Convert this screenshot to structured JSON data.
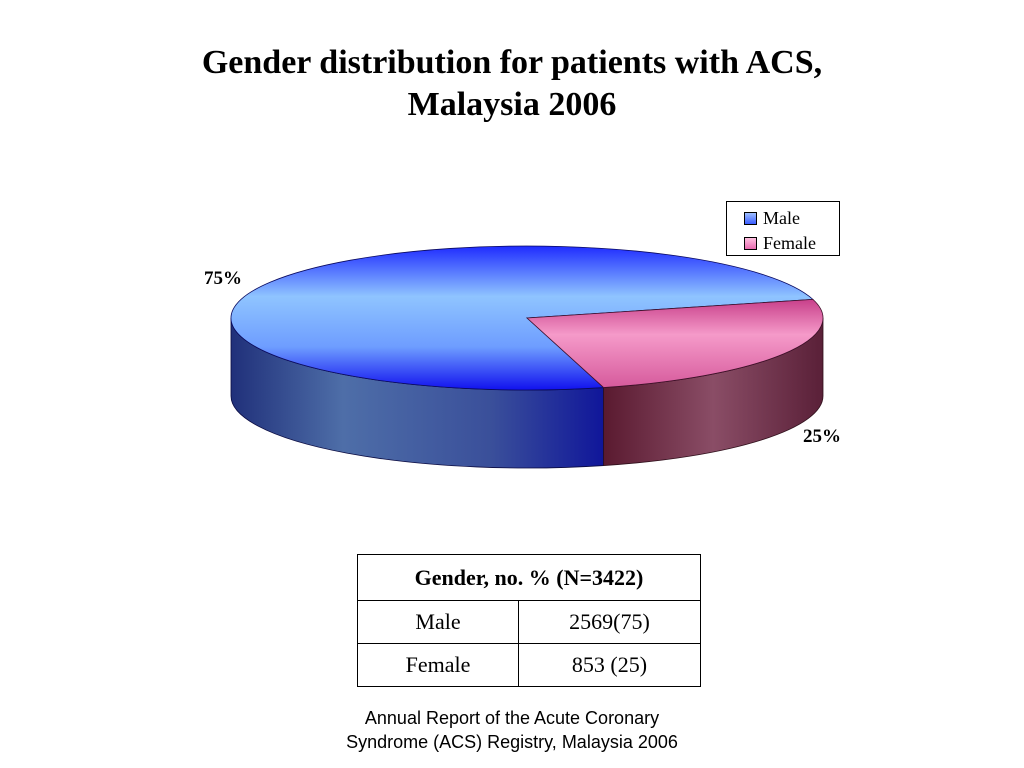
{
  "title": {
    "line1": "Gender distribution for patients with ACS,",
    "line2": "Malaysia 2006"
  },
  "chart_data": {
    "type": "pie",
    "style": "3d",
    "categories": [
      "Male",
      "Female"
    ],
    "values": [
      75,
      25
    ],
    "data_labels": [
      "75%",
      "25%"
    ],
    "legend_position": "top-right",
    "colors": {
      "Male": "#3a5cff",
      "Female": "#e86ab0"
    }
  },
  "legend": {
    "items": [
      {
        "label": "Male",
        "color": "#5f86ff"
      },
      {
        "label": "Female",
        "color": "#f08cc4"
      }
    ]
  },
  "table": {
    "header": "Gender, no. % (N=3422)",
    "rows": [
      {
        "gender": "Male",
        "value": "2569(75)"
      },
      {
        "gender": "Female",
        "value": "853 (25)"
      }
    ]
  },
  "source": {
    "line1": "Annual Report of the Acute Coronary",
    "line2": "Syndrome (ACS) Registry, Malaysia 2006"
  }
}
